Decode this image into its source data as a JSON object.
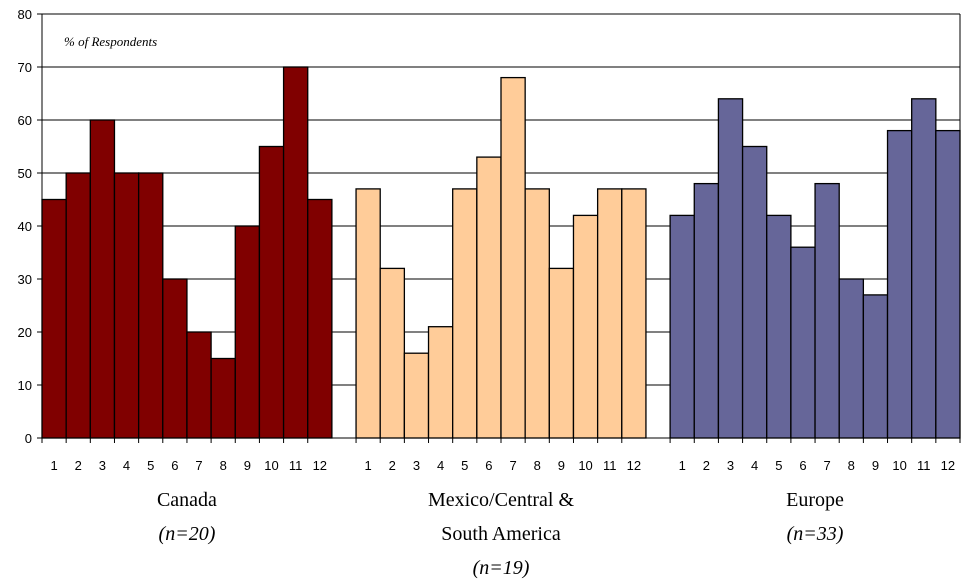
{
  "chart_data": {
    "type": "bar",
    "ylabel": "% of Respondents",
    "ylim": [
      0,
      80
    ],
    "yticks": [
      "0",
      "10",
      "20",
      "30",
      "40",
      "50",
      "60",
      "70",
      "80"
    ],
    "grid": true,
    "categories": [
      "1",
      "2",
      "3",
      "4",
      "5",
      "6",
      "7",
      "8",
      "9",
      "10",
      "11",
      "12"
    ],
    "groups": [
      {
        "label_lines": [
          "Canada"
        ],
        "n_label": "(n=20)",
        "color": "#800000",
        "values": [
          45,
          50,
          60,
          50,
          50,
          30,
          20,
          15,
          40,
          55,
          70,
          45
        ]
      },
      {
        "label_lines": [
          "Mexico/Central &",
          "South America"
        ],
        "n_label": "(n=19)",
        "color": "#ffcc99",
        "values": [
          47,
          32,
          16,
          21,
          47,
          53,
          68,
          47,
          32,
          42,
          47,
          47
        ]
      },
      {
        "label_lines": [
          "Europe"
        ],
        "n_label": "(n=33)",
        "color": "#666699",
        "values": [
          42,
          48,
          64,
          55,
          42,
          36,
          48,
          30,
          27,
          58,
          64,
          58
        ]
      }
    ]
  }
}
